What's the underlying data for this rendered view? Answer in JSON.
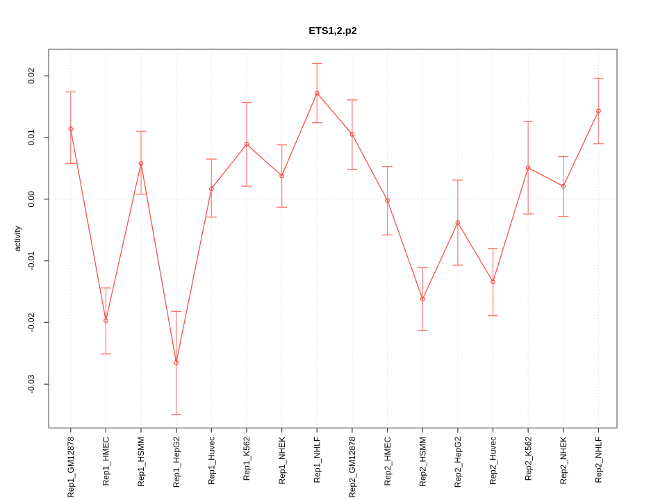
{
  "chart_data": {
    "type": "line",
    "subtype": "point-line-with-error-bars",
    "title": "ETS1,2.p2",
    "xlabel": "",
    "ylabel": "activity",
    "legend": "none",
    "grid": "vertical dotted gridlines at each category plus dotted horizontal line at y=0",
    "categories": [
      "Rep1_GM12878",
      "Rep1_HMEC",
      "Rep1_HSMM",
      "Rep1_HepG2",
      "Rep1_Huvec",
      "Rep1_K562",
      "Rep1_NHEK",
      "Rep1_NHLF",
      "Rep2_GM12878",
      "Rep2_HMEC",
      "Rep2_HSMM",
      "Rep2_HepG2",
      "Rep2_Huvec",
      "Rep2_K562",
      "Rep2_NHEK",
      "Rep2_NHLF"
    ],
    "series": [
      {
        "name": "activity",
        "values": [
          0.0114,
          -0.0197,
          0.0058,
          -0.0265,
          0.0017,
          0.0089,
          0.0038,
          0.0172,
          0.0105,
          -0.0002,
          -0.0162,
          -0.0038,
          -0.0134,
          0.0051,
          0.0021,
          0.0143
        ],
        "upper": [
          0.0174,
          -0.0144,
          0.011,
          -0.0182,
          0.0065,
          0.0157,
          0.0088,
          0.022,
          0.0161,
          0.0053,
          -0.0111,
          0.0031,
          -0.008,
          0.0126,
          0.0069,
          0.0196
        ],
        "lower": [
          0.0058,
          -0.0251,
          0.0008,
          -0.0349,
          -0.0029,
          0.0021,
          -0.0013,
          0.0124,
          0.0048,
          -0.0058,
          -0.0213,
          -0.0107,
          -0.0189,
          -0.0024,
          -0.0028,
          0.009
        ]
      }
    ],
    "yticks": [
      {
        "value": 0.02,
        "label": "0.02"
      },
      {
        "value": 0.01,
        "label": "0.01"
      },
      {
        "value": 0.0,
        "label": "0.00"
      },
      {
        "value": -0.01,
        "label": "-0.01"
      },
      {
        "value": -0.02,
        "label": "-0.02"
      },
      {
        "value": -0.03,
        "label": "-0.03"
      }
    ],
    "ylim": [
      -0.0371,
      0.0244
    ],
    "colors": {
      "series": "#f8514a",
      "error_bar": "#fa6860",
      "grid": "#dedede",
      "zero_line": "#dadada",
      "box": "#8a8a8a",
      "tick": "#444444",
      "text": "#000000",
      "background": "#ffffff"
    }
  }
}
